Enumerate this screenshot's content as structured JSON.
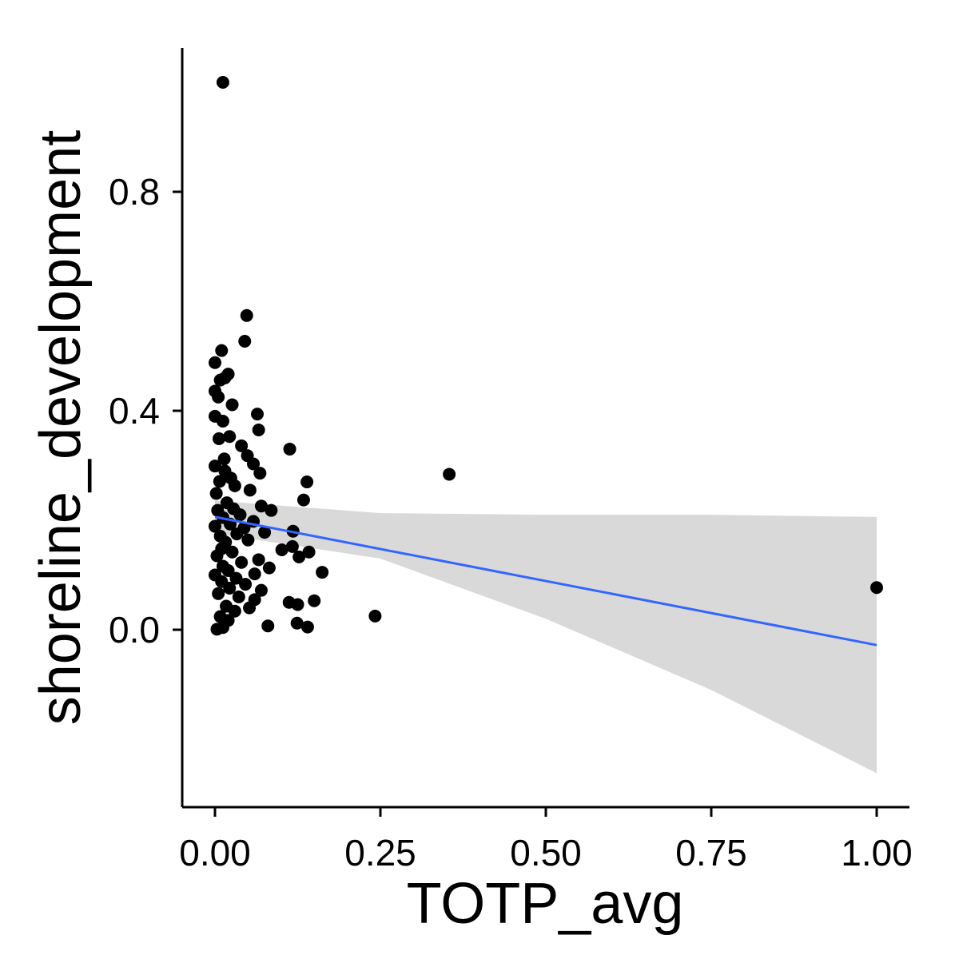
{
  "chart_data": {
    "type": "scatter",
    "title": "",
    "xlabel": "TOTP_avg",
    "ylabel": "shoreline_development",
    "xlim": [
      -0.1,
      1.05
    ],
    "ylim": [
      -0.32,
      1.06
    ],
    "x_ticks": [
      {
        "value": 0.0,
        "label": "0.00"
      },
      {
        "value": 0.25,
        "label": "0.25"
      },
      {
        "value": 0.5,
        "label": "0.50"
      },
      {
        "value": 0.75,
        "label": "0.75"
      },
      {
        "value": 1.0,
        "label": "1.00"
      }
    ],
    "y_ticks": [
      {
        "value": 0.0,
        "label": "0.0"
      },
      {
        "value": 0.4,
        "label": "0.4"
      },
      {
        "value": 0.8,
        "label": "0.8"
      }
    ],
    "grid": false,
    "points": [
      [
        0.012,
        1.0
      ],
      [
        0.048,
        0.574
      ],
      [
        0.045,
        0.527
      ],
      [
        0.01,
        0.51
      ],
      [
        0.0,
        0.488
      ],
      [
        0.02,
        0.467
      ],
      [
        0.015,
        0.46
      ],
      [
        0.008,
        0.456
      ],
      [
        0.0,
        0.436
      ],
      [
        0.005,
        0.425
      ],
      [
        0.026,
        0.411
      ],
      [
        0.064,
        0.394
      ],
      [
        0.0,
        0.39
      ],
      [
        0.012,
        0.381
      ],
      [
        0.066,
        0.365
      ],
      [
        0.022,
        0.353
      ],
      [
        0.006,
        0.349
      ],
      [
        0.04,
        0.336
      ],
      [
        0.113,
        0.33
      ],
      [
        0.049,
        0.318
      ],
      [
        0.014,
        0.312
      ],
      [
        0.058,
        0.303
      ],
      [
        0.0,
        0.299
      ],
      [
        0.068,
        0.286
      ],
      [
        0.354,
        0.284
      ],
      [
        0.024,
        0.277
      ],
      [
        0.007,
        0.271
      ],
      [
        0.139,
        0.27
      ],
      [
        0.03,
        0.263
      ],
      [
        0.053,
        0.255
      ],
      [
        0.002,
        0.249
      ],
      [
        0.134,
        0.237
      ],
      [
        0.018,
        0.232
      ],
      [
        0.07,
        0.226
      ],
      [
        0.004,
        0.218
      ],
      [
        0.085,
        0.218
      ],
      [
        0.038,
        0.21
      ],
      [
        0.012,
        0.205
      ],
      [
        0.058,
        0.198
      ],
      [
        0.023,
        0.193
      ],
      [
        0.0,
        0.189
      ],
      [
        0.118,
        0.18
      ],
      [
        0.075,
        0.178
      ],
      [
        0.033,
        0.175
      ],
      [
        0.008,
        0.171
      ],
      [
        0.05,
        0.164
      ],
      [
        0.016,
        0.16
      ],
      [
        0.117,
        0.152
      ],
      [
        0.101,
        0.146
      ],
      [
        0.026,
        0.142
      ],
      [
        0.142,
        0.142
      ],
      [
        0.003,
        0.135
      ],
      [
        0.127,
        0.133
      ],
      [
        0.066,
        0.128
      ],
      [
        0.04,
        0.123
      ],
      [
        0.012,
        0.116
      ],
      [
        0.082,
        0.113
      ],
      [
        0.02,
        0.108
      ],
      [
        0.162,
        0.105
      ],
      [
        0.06,
        0.102
      ],
      [
        0.0,
        0.1
      ],
      [
        0.032,
        0.094
      ],
      [
        0.01,
        0.088
      ],
      [
        0.046,
        0.083
      ],
      [
        0.022,
        0.076
      ],
      [
        0.07,
        0.072
      ],
      [
        0.005,
        0.066
      ],
      [
        0.036,
        0.06
      ],
      [
        0.06,
        0.055
      ],
      [
        0.15,
        0.053
      ],
      [
        0.112,
        0.05
      ],
      [
        0.125,
        0.046
      ],
      [
        0.017,
        0.043
      ],
      [
        0.052,
        0.04
      ],
      [
        0.03,
        0.034
      ],
      [
        0.242,
        0.025
      ],
      [
        0.008,
        0.024
      ],
      [
        0.02,
        0.017
      ],
      [
        0.124,
        0.012
      ],
      [
        0.08,
        0.007
      ],
      [
        0.14,
        0.005
      ],
      [
        0.012,
        0.004
      ],
      [
        0.003,
        0.001
      ],
      [
        1.0,
        0.077
      ],
      [
        0.028,
        0.221
      ],
      [
        0.044,
        0.186
      ],
      [
        0.015,
        0.29
      ],
      [
        0.01,
        0.148
      ]
    ],
    "trend_line": {
      "x": [
        0.0,
        1.0
      ],
      "y": [
        0.206,
        -0.028
      ]
    },
    "confidence_band": {
      "x": [
        0.0,
        0.25,
        0.5,
        0.75,
        1.0
      ],
      "upper": [
        0.236,
        0.213,
        0.21,
        0.21,
        0.206
      ],
      "lower": [
        0.176,
        0.13,
        0.02,
        -0.11,
        -0.262
      ]
    },
    "colors": {
      "points": "#000000",
      "trend_line": "#3366ff",
      "confidence_band": "#d9d9d9",
      "axis": "#000000"
    }
  }
}
